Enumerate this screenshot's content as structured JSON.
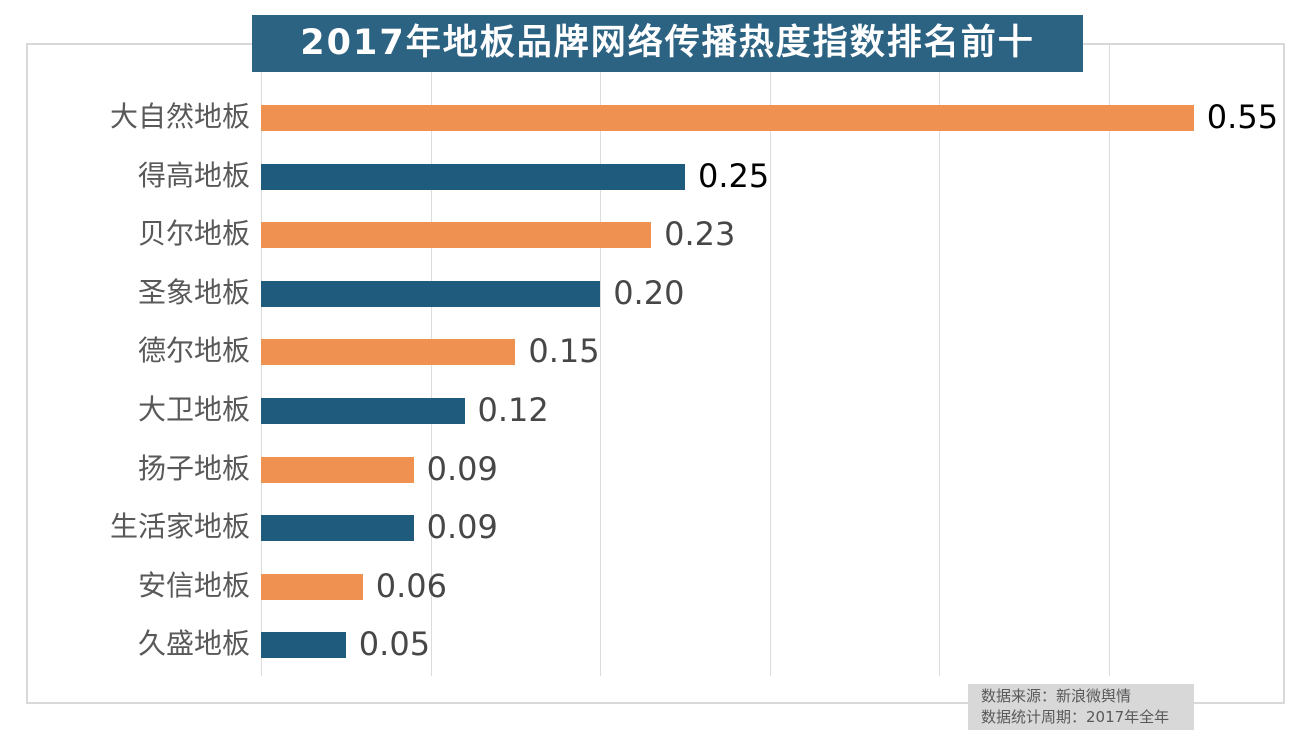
{
  "title": "2017年地板品牌网络传播热度指数排名前十",
  "chart_data": {
    "type": "bar",
    "orientation": "horizontal",
    "title": "2017年地板品牌网络传播热度指数排名前十",
    "categories": [
      "大自然地板",
      "得高地板",
      "贝尔地板",
      "圣象地板",
      "德尔地板",
      "大卫地板",
      "扬子地板",
      "生活家地板",
      "安信地板",
      "久盛地板"
    ],
    "values": [
      0.55,
      0.25,
      0.23,
      0.2,
      0.15,
      0.12,
      0.09,
      0.09,
      0.06,
      0.05
    ],
    "value_labels": [
      "0.55",
      "0.25",
      "0.23",
      "0.20",
      "0.15",
      "0.12",
      "0.09",
      "0.09",
      "0.06",
      "0.05"
    ],
    "xlabel": "",
    "ylabel": "",
    "xlim": [
      0,
      0.6
    ],
    "grid": true,
    "gridline_values": [
      0,
      0.1,
      0.2,
      0.3,
      0.4,
      0.5
    ],
    "legend": "none",
    "emphasized_value_indices": [
      0,
      1
    ]
  },
  "colors": {
    "bar_orange": "#ef9150",
    "bar_blue": "#1f5b7c",
    "title_background": "#2c6383",
    "title_text": "#ffffff",
    "gridline": "#dcdcdc",
    "border": "#d9d9d9",
    "category_label": "#595959",
    "value_label_normal": "#474747",
    "value_label_emphasis": "#000000",
    "footer_background": "#d8d8d8",
    "footer_text": "#595959"
  },
  "footer": {
    "source_line": "数据来源：新浪微舆情",
    "period_line": "数据统计周期：2017年全年"
  }
}
